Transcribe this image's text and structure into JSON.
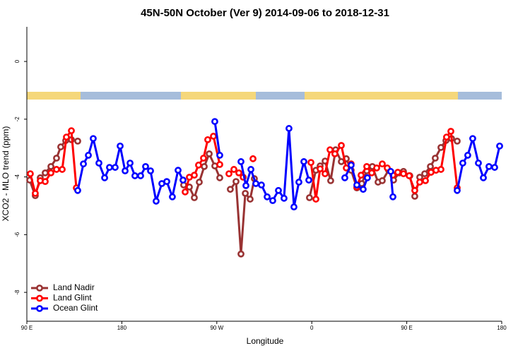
{
  "chart_data": {
    "type": "line",
    "title": "45N-50N October (Ver 9)   2014-09-06 to 2018-12-31",
    "x_label": "Longitude",
    "y_label": "XCO2 - MLO trend (ppm)",
    "xlim": [
      90,
      540
    ],
    "xticks": [
      {
        "value": 90,
        "label": "90 E"
      },
      180,
      {
        "value": 270,
        "label": "90 W"
      },
      {
        "value": 360,
        "label": "0"
      },
      {
        "value": 450,
        "label": "90 E"
      },
      {
        "value": 540,
        "label": "180"
      }
    ],
    "ylim": [
      -9.0,
      1.2
    ],
    "yticks": [
      0,
      -2,
      -4,
      -6,
      -8
    ],
    "legend": "bottomleft",
    "series": [
      {
        "name": "Land Nadir",
        "color": "#993333",
        "x": [
          92.7,
          98.0,
          102.7,
          107.4,
          112.8,
          118.1,
          122.1,
          126.8,
          132.2,
          138.2,
          null,
          238.6,
          244.0,
          248.7,
          253.4,
          258.1,
          262.8,
          268.1,
          272.8,
          null,
          282.8,
          288.2,
          292.9,
          297.0,
          301.6,
          305.6,
          null,
          357.8,
          363.9,
          367.9,
          372.6,
          377.9,
          382.6,
          388.0,
          392.7,
          397.3,
          402.7,
          407.4,
          412.1,
          417.4,
          422.8,
          426.8,
          432.8,
          437.5,
          442.9,
          446.9,
          452.9,
          457.6,
          462.3,
          467.0,
          472.4,
          477.0,
          482.4,
          487.1,
          492.4,
          497.8
        ],
        "values": [
          -4.11,
          -4.65,
          -4.03,
          -3.86,
          -3.64,
          -3.35,
          -2.96,
          -2.74,
          -2.71,
          -2.76,
          null,
          -4.28,
          -4.35,
          -4.72,
          -4.18,
          -3.64,
          -3.2,
          -3.62,
          -4.03,
          null,
          -4.43,
          -4.16,
          -6.67,
          -4.57,
          -4.77,
          -4.06,
          null,
          -4.72,
          -3.77,
          -3.62,
          -3.45,
          -4.13,
          -3.06,
          -3.47,
          -3.37,
          -3.77,
          -4.38,
          -4.23,
          -3.79,
          -3.64,
          -4.18,
          -4.13,
          -3.77,
          -4.11,
          -3.86,
          -3.81,
          -3.96,
          -4.67,
          -4.01,
          -3.89,
          -3.64,
          -3.35,
          -2.98,
          -2.74,
          -2.67,
          -2.76
        ]
      },
      {
        "name": "Land Glint",
        "color": "#ff0000",
        "x": [
          93.3,
          98.0,
          102.7,
          107.4,
          112.8,
          118.1,
          123.5,
          127.5,
          132.2,
          136.9,
          null,
          240.0,
          244.0,
          248.7,
          252.7,
          257.4,
          261.4,
          266.8,
          272.8,
          null,
          281.5,
          286.2,
          290.9,
          295.0,
          null,
          304.3,
          null,
          359.2,
          363.9,
          367.9,
          372.6,
          377.3,
          381.9,
          388.0,
          392.7,
          397.3,
          402.7,
          406.7,
          412.1,
          416.8,
          421.5,
          426.8,
          431.5,
          436.9,
          441.5,
          446.9,
          452.3,
          457.6,
          462.3,
          467.7,
          473.0,
          477.7,
          482.4,
          487.7,
          491.8,
          497.8
        ],
        "values": [
          -3.89,
          -4.57,
          -4.13,
          -4.16,
          -3.86,
          -3.74,
          -3.74,
          -2.62,
          -2.4,
          -4.38,
          null,
          -4.52,
          -4.01,
          -3.94,
          -3.59,
          -3.35,
          -2.71,
          -2.59,
          -3.57,
          null,
          -3.89,
          -3.74,
          -3.86,
          -4.01,
          null,
          -3.37,
          null,
          -3.5,
          -4.77,
          -3.72,
          -3.89,
          -3.06,
          -3.2,
          -2.91,
          -3.69,
          -3.55,
          -4.35,
          -3.94,
          -3.64,
          -3.86,
          -3.69,
          -3.55,
          -3.69,
          -3.94,
          -3.84,
          -3.89,
          -3.96,
          -4.47,
          -4.18,
          -4.13,
          -3.84,
          -3.77,
          -3.74,
          -2.62,
          -2.42,
          -4.38
        ]
      },
      {
        "name": "Ocean Glint",
        "color": "#0000ff",
        "x": [
          138.2,
          143.6,
          148.3,
          152.9,
          158.3,
          163.7,
          168.3,
          173.7,
          178.4,
          183.1,
          187.8,
          192.4,
          197.8,
          202.5,
          207.2,
          212.5,
          217.9,
          222.6,
          227.9,
          233.3,
          238.0,
          null,
          268.1,
          272.8,
          null,
          292.9,
          297.6,
          302.3,
          307.0,
          312.3,
          317.7,
          323.0,
          328.4,
          333.7,
          338.4,
          343.1,
          347.8,
          352.5,
          357.2,
          null,
          391.3,
          397.3,
          402.7,
          408.7,
          412.7,
          null,
          434.8,
          436.9,
          null,
          497.8,
          503.1,
          507.8,
          512.5,
          517.9,
          522.6,
          527.9,
          533.3,
          538.0
        ],
        "values": [
          -4.47,
          -3.55,
          -3.25,
          -2.67,
          -3.52,
          -4.03,
          -3.67,
          -3.67,
          -2.93,
          -3.79,
          -3.52,
          -3.96,
          -3.96,
          -3.64,
          -3.79,
          -4.84,
          -4.23,
          -4.16,
          -4.69,
          -3.77,
          -4.11,
          null,
          -2.08,
          -3.25,
          null,
          -3.47,
          -4.3,
          -3.74,
          -4.23,
          -4.28,
          -4.69,
          -4.82,
          -4.47,
          -4.74,
          -2.32,
          -5.04,
          -4.18,
          -3.47,
          -4.11,
          null,
          -4.03,
          -3.59,
          -4.28,
          -4.43,
          -4.03,
          null,
          -3.81,
          -4.69,
          null,
          -4.47,
          -3.52,
          -3.25,
          -2.67,
          -3.52,
          -4.03,
          -3.64,
          -3.67,
          -2.93
        ]
      }
    ]
  }
}
